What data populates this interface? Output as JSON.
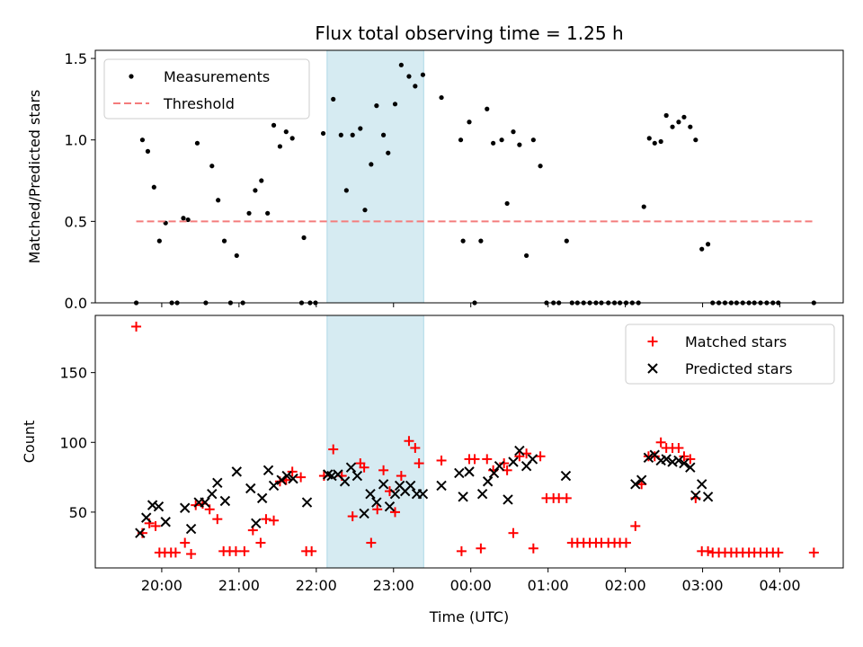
{
  "chart_data": {
    "title": "Flux total observing time = 1.25 h",
    "xlabel": "Time (UTC)",
    "x_ticks": [
      "20:00",
      "21:00",
      "22:00",
      "23:00",
      "00:00",
      "01:00",
      "02:00",
      "03:00",
      "04:00"
    ],
    "x_tick_hours": [
      20,
      21,
      22,
      23,
      24,
      25,
      26,
      27,
      28
    ],
    "xlim_hours": [
      19.14,
      28.82
    ],
    "highlight_span_hours": [
      22.14,
      23.39
    ],
    "highlight_color": "#add8e6",
    "panels": [
      {
        "type": "scatter",
        "ylabel": "Matched/Predicted stars",
        "ylim": [
          0,
          1.55
        ],
        "y_ticks": [
          0.0,
          0.5,
          1.0,
          1.5
        ],
        "y_tick_labels": [
          "0.0",
          "0.5",
          "1.0",
          "1.5"
        ],
        "legend_position": "upper-left",
        "series": [
          {
            "name": "Measurements",
            "marker": "dot",
            "color": "#000000",
            "x": [
              19.67,
              19.75,
              19.82,
              19.9,
              19.97,
              20.05,
              20.13,
              20.2,
              20.28,
              20.34,
              20.46,
              20.57,
              20.65,
              20.73,
              20.81,
              20.89,
              20.97,
              21.05,
              21.13,
              21.21,
              21.29,
              21.37,
              21.45,
              21.53,
              21.61,
              21.69,
              21.81,
              21.84,
              21.92,
              21.99,
              22.09,
              22.22,
              22.32,
              22.39,
              22.47,
              22.57,
              22.63,
              22.71,
              22.78,
              22.87,
              22.93,
              23.02,
              23.1,
              23.2,
              23.28,
              23.38,
              23.62,
              23.87,
              23.9,
              23.98,
              24.05,
              24.13,
              24.21,
              24.29,
              24.4,
              24.47,
              24.55,
              24.63,
              24.72,
              24.81,
              24.9,
              24.98,
              25.07,
              25.14,
              25.24,
              25.31,
              25.38,
              25.46,
              25.54,
              25.62,
              25.69,
              25.78,
              25.86,
              25.93,
              26.01,
              26.09,
              26.17,
              26.24,
              26.31,
              26.38,
              26.46,
              26.53,
              26.61,
              26.69,
              26.76,
              26.84,
              26.91,
              26.99,
              27.07,
              27.13,
              27.21,
              27.29,
              27.37,
              27.44,
              27.52,
              27.6,
              27.67,
              27.75,
              27.83,
              27.91,
              27.98,
              28.44
            ],
            "y": [
              0.0,
              1.0,
              0.93,
              0.71,
              0.38,
              0.49,
              0.0,
              0.0,
              0.52,
              0.51,
              0.98,
              0.0,
              0.84,
              0.63,
              0.38,
              0.0,
              0.29,
              0.0,
              0.55,
              0.69,
              0.75,
              0.55,
              1.09,
              0.96,
              1.05,
              1.01,
              0.0,
              0.4,
              0.0,
              0.0,
              1.04,
              1.25,
              1.03,
              0.69,
              1.03,
              1.07,
              0.57,
              0.85,
              1.21,
              1.03,
              0.92,
              1.22,
              1.46,
              1.39,
              1.33,
              1.4,
              1.26,
              1.0,
              0.38,
              1.11,
              0.0,
              0.38,
              1.19,
              0.98,
              1.0,
              0.61,
              1.05,
              0.97,
              0.29,
              1.0,
              0.84,
              0.0,
              0.0,
              0.0,
              0.38,
              0.0,
              0.0,
              0.0,
              0.0,
              0.0,
              0.0,
              0.0,
              0.0,
              0.0,
              0.0,
              0.0,
              0.0,
              0.59,
              1.01,
              0.98,
              0.99,
              1.15,
              1.08,
              1.11,
              1.14,
              1.08,
              1.0,
              0.33,
              0.36,
              0.0,
              0.0,
              0.0,
              0.0,
              0.0,
              0.0,
              0.0,
              0.0,
              0.0,
              0.0,
              0.0,
              0.0,
              0.0
            ]
          },
          {
            "name": "Threshold",
            "marker": "dashed-line",
            "color": "#f47c7c",
            "x": [
              19.67,
              28.44
            ],
            "y": [
              0.5,
              0.5
            ]
          }
        ]
      },
      {
        "type": "scatter",
        "ylabel": "Count",
        "ylim": [
          10,
          191
        ],
        "y_ticks": [
          50,
          100,
          150
        ],
        "y_tick_labels": [
          "50",
          "100",
          "150"
        ],
        "legend_position": "upper-right",
        "series": [
          {
            "name": "Matched stars",
            "marker": "plus",
            "color": "#ff0000",
            "x": [
              19.67,
              19.75,
              19.84,
              19.92,
              19.97,
              20.04,
              20.12,
              20.18,
              20.3,
              20.38,
              20.44,
              20.53,
              20.62,
              20.72,
              20.8,
              20.88,
              20.96,
              21.07,
              21.18,
              21.28,
              21.35,
              21.45,
              21.53,
              21.61,
              21.69,
              21.8,
              21.87,
              21.94,
              22.1,
              22.22,
              22.33,
              22.47,
              22.57,
              22.62,
              22.71,
              22.79,
              22.87,
              22.95,
              23.02,
              23.1,
              23.2,
              23.28,
              23.33,
              23.62,
              23.88,
              23.98,
              24.05,
              24.13,
              24.21,
              24.29,
              24.43,
              24.47,
              24.55,
              24.63,
              24.72,
              24.81,
              24.9,
              24.98,
              25.07,
              25.14,
              25.24,
              25.31,
              25.38,
              25.46,
              25.54,
              25.62,
              25.69,
              25.78,
              25.86,
              25.93,
              26.01,
              26.13,
              26.21,
              26.3,
              26.38,
              26.46,
              26.53,
              26.61,
              26.69,
              26.76,
              26.84,
              26.91,
              26.99,
              27.07,
              27.13,
              27.21,
              27.29,
              27.37,
              27.44,
              27.52,
              27.6,
              27.67,
              27.75,
              27.83,
              27.91,
              27.98,
              28.44
            ],
            "y": [
              183,
              35,
              42,
              40,
              21,
              21,
              21,
              21,
              28,
              20,
              55,
              56,
              52,
              45,
              22,
              22,
              22,
              22,
              37,
              28,
              45,
              44,
              72,
              73,
              79,
              75,
              22,
              22,
              76,
              95,
              76,
              47,
              85,
              82,
              28,
              52,
              80,
              65,
              50,
              76,
              101,
              96,
              85,
              87,
              22,
              88,
              88,
              24,
              88,
              80,
              85,
              80,
              35,
              90,
              92,
              24,
              90,
              60,
              60,
              60,
              60,
              28,
              28,
              28,
              28,
              28,
              28,
              28,
              28,
              28,
              28,
              40,
              70,
              90,
              90,
              100,
              96,
              96,
              96,
              90,
              88,
              60,
              22,
              22,
              21,
              21,
              21,
              21,
              21,
              21,
              21,
              21,
              21,
              21,
              21,
              21,
              21
            ]
          },
          {
            "name": "Predicted stars",
            "marker": "x",
            "color": "#000000",
            "x": [
              19.72,
              19.8,
              19.88,
              19.96,
              20.05,
              20.3,
              20.38,
              20.48,
              20.56,
              20.65,
              20.72,
              20.82,
              20.97,
              21.15,
              21.22,
              21.3,
              21.38,
              21.45,
              21.55,
              21.62,
              21.7,
              21.88,
              22.15,
              22.2,
              22.28,
              22.37,
              22.45,
              22.53,
              22.62,
              22.7,
              22.78,
              22.87,
              22.95,
              23.02,
              23.08,
              23.15,
              23.22,
              23.3,
              23.38,
              23.62,
              23.85,
              23.9,
              23.98,
              24.15,
              24.22,
              24.3,
              24.37,
              24.48,
              24.55,
              24.63,
              24.72,
              24.8,
              25.23,
              26.13,
              26.21,
              26.3,
              26.38,
              26.46,
              26.53,
              26.61,
              26.69,
              26.76,
              26.84,
              26.91,
              26.99,
              27.07
            ],
            "y": [
              35,
              46,
              55,
              54,
              43,
              53,
              38,
              57,
              57,
              63,
              71,
              58,
              79,
              67,
              42,
              60,
              80,
              69,
              73,
              76,
              74,
              57,
              77,
              76,
              77,
              72,
              82,
              76,
              49,
              63,
              57,
              70,
              54,
              63,
              69,
              65,
              69,
              63,
              63,
              69,
              78,
              61,
              79,
              63,
              72,
              78,
              83,
              59,
              86,
              94,
              83,
              88,
              76,
              70,
              73,
              89,
              91,
              87,
              88,
              86,
              87,
              85,
              82,
              62,
              70,
              61
            ]
          }
        ]
      }
    ]
  }
}
